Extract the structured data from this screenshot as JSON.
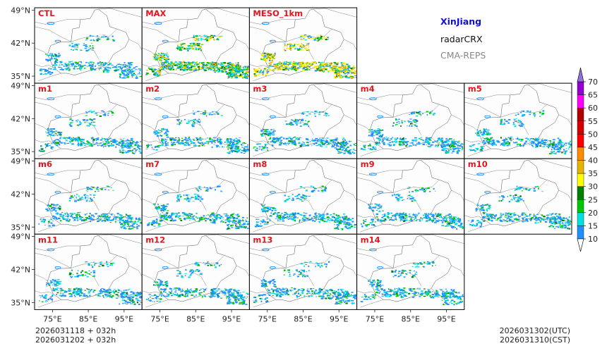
{
  "chart_data": {
    "type": "map_panels",
    "region": "XinJiang",
    "variable": "radarCRX",
    "model": "CMA-REPS",
    "info_colors": {
      "region": "#1010d0",
      "variable": "#111111",
      "model": "#888888"
    },
    "panels": [
      "CTL",
      "MAX",
      "MESO_1km",
      "m1",
      "m2",
      "m3",
      "m4",
      "m5",
      "m6",
      "m7",
      "m8",
      "m9",
      "m10",
      "m11",
      "m12",
      "m13",
      "m14"
    ],
    "lat_ticks": [
      "49°N",
      "42°N",
      "35°N"
    ],
    "lon_ticks": [
      "75°E",
      "85°E",
      "95°E"
    ],
    "lat_range": [
      33.5,
      49.5
    ],
    "lon_range": [
      70,
      100
    ],
    "colorbar": {
      "levels": [
        10,
        15,
        20,
        25,
        30,
        35,
        40,
        45,
        50,
        55,
        60,
        65,
        70
      ],
      "colors": [
        "#1e90ff",
        "#00e0e0",
        "#00c800",
        "#008000",
        "#ffff00",
        "#e6b400",
        "#ff8c00",
        "#ff0000",
        "#d40000",
        "#b00000",
        "#ff00ff",
        "#9400d3",
        "#9370db"
      ],
      "extend": "both"
    },
    "init_time_lines": [
      "2026031118  +  032h",
      "2026031202  +  032h"
    ],
    "valid_time_lines": [
      "2026031302(UTC)",
      "2026031310(CST)"
    ]
  }
}
